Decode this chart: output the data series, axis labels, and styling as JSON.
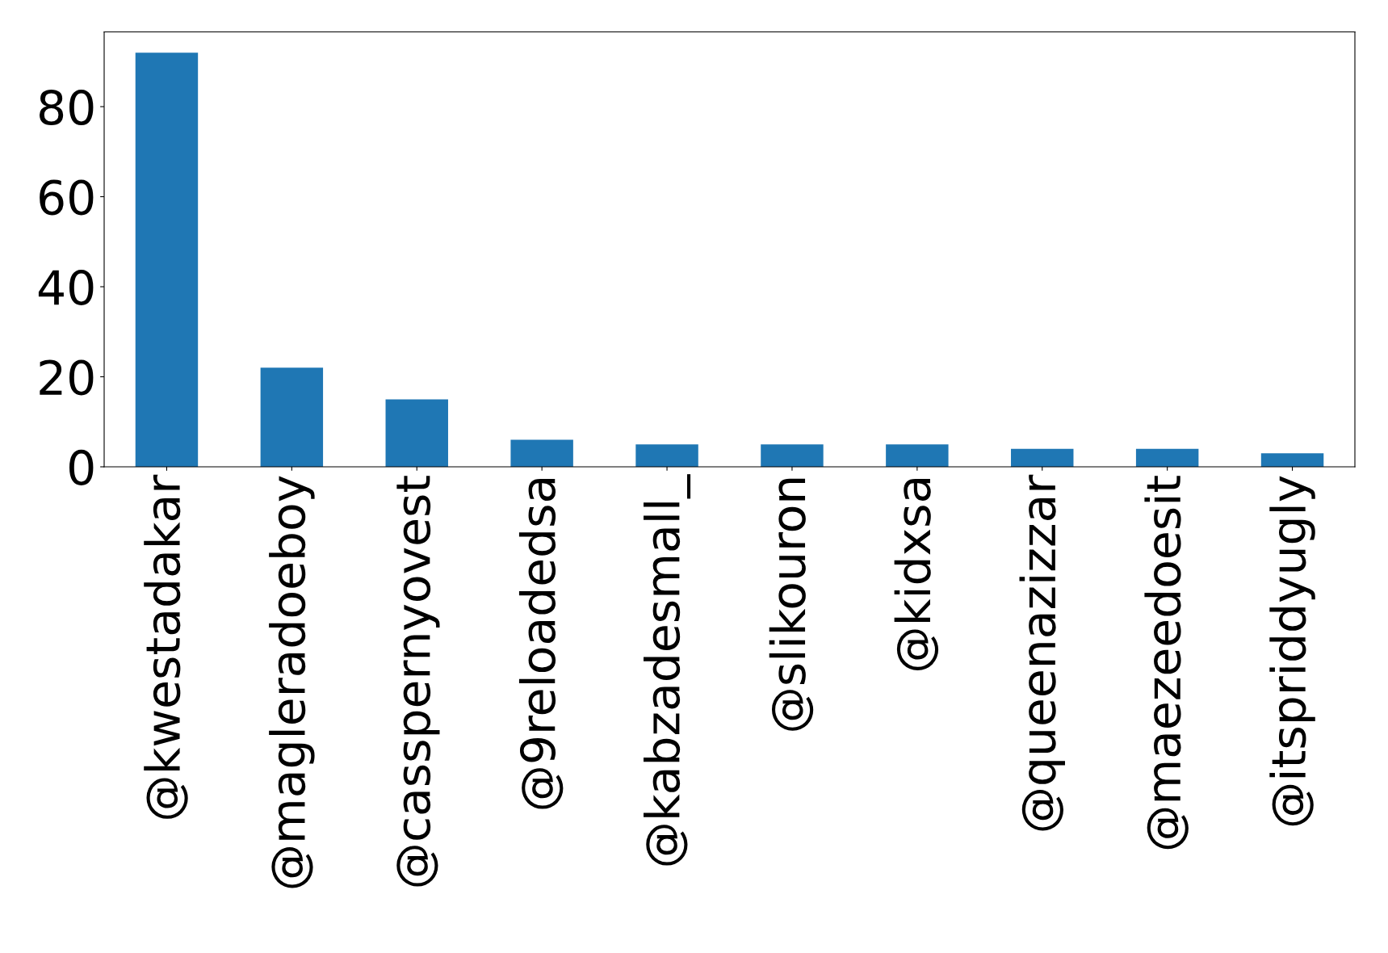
{
  "chart_data": {
    "type": "bar",
    "categories": [
      "@kwestadakar",
      "@magleradoeboy",
      "@casspernyovest",
      "@9reloadedsa",
      "@kabzadesmall_",
      "@slikouron",
      "@kidxsa",
      "@queenazizzar",
      "@maezeedoesit",
      "@itspriddyugly"
    ],
    "values": [
      92,
      22,
      15,
      6,
      5,
      5,
      5,
      4,
      4,
      3
    ],
    "color": "#1f77b4",
    "ylim": [
      0,
      96.6
    ],
    "yticks": [
      0,
      20,
      40,
      60,
      80
    ],
    "grid": false
  }
}
